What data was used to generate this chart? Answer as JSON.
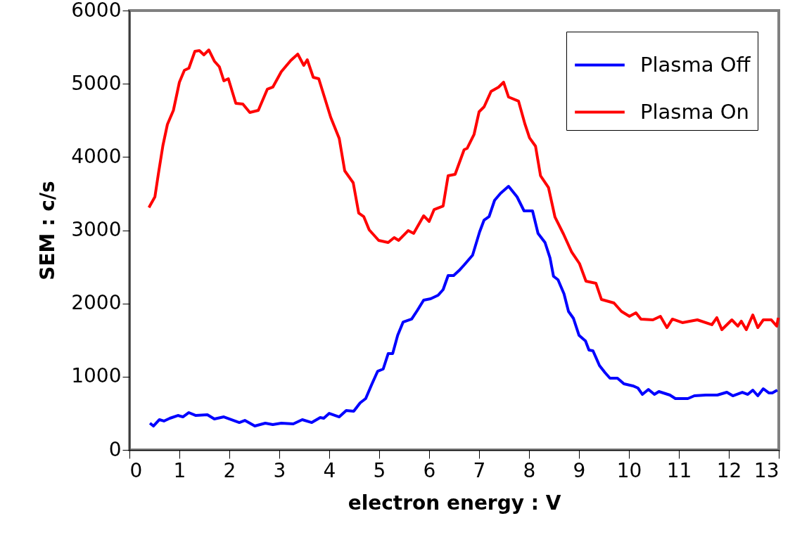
{
  "chart_data": {
    "type": "line",
    "xlabel": "electron energy : V",
    "ylabel": "SEM : c/s",
    "xlim": [
      0,
      13
    ],
    "xticks": [
      0,
      1,
      2,
      3,
      4,
      5,
      6,
      7,
      8,
      9,
      10,
      11,
      12,
      13
    ],
    "ylim": [
      0,
      6000
    ],
    "yticks": [
      0,
      1000,
      2000,
      3000,
      4000,
      5000,
      6000
    ],
    "grid": false,
    "legend": "top right",
    "marker": "none",
    "line_style": "solid",
    "series": [
      {
        "name": "Plasma Off",
        "color": "#0000ff",
        "x": [
          0.41,
          0.48,
          0.6,
          0.69,
          0.81,
          0.97,
          1.07,
          1.19,
          1.33,
          1.56,
          1.7,
          1.89,
          2.2,
          2.31,
          2.51,
          2.72,
          2.87,
          3.04,
          3.28,
          3.46,
          3.65,
          3.82,
          3.89,
          4.0,
          4.2,
          4.34,
          4.49,
          4.62,
          4.73,
          4.85,
          4.97,
          5.08,
          5.18,
          5.27,
          5.37,
          5.48,
          5.65,
          5.76,
          5.89,
          6.03,
          6.18,
          6.28,
          6.38,
          6.49,
          6.6,
          6.7,
          6.87,
          7.01,
          7.1,
          7.2,
          7.31,
          7.43,
          7.59,
          7.76,
          7.9,
          8.07,
          8.18,
          8.32,
          8.42,
          8.49,
          8.58,
          8.7,
          8.79,
          8.89,
          9.0,
          9.13,
          9.2,
          9.28,
          9.41,
          9.52,
          9.62,
          9.77,
          9.9,
          10.08,
          10.18,
          10.27,
          10.39,
          10.51,
          10.6,
          10.82,
          10.93,
          11.18,
          11.31,
          11.54,
          11.77,
          11.96,
          12.08,
          12.27,
          12.38,
          12.48,
          12.58,
          12.69,
          12.8,
          12.87,
          12.97
        ],
        "values": [
          365,
          326,
          413,
          394,
          432,
          470,
          451,
          509,
          470,
          480,
          422,
          451,
          374,
          403,
          326,
          365,
          346,
          365,
          355,
          413,
          374,
          442,
          432,
          499,
          451,
          538,
          528,
          643,
          701,
          893,
          1075,
          1104,
          1315,
          1315,
          1565,
          1747,
          1786,
          1901,
          2045,
          2064,
          2112,
          2189,
          2381,
          2381,
          2450,
          2525,
          2659,
          2976,
          3139,
          3187,
          3408,
          3504,
          3600,
          3456,
          3264,
          3264,
          2957,
          2832,
          2621,
          2371,
          2323,
          2131,
          1891,
          1795,
          1565,
          1488,
          1363,
          1354,
          1152,
          1056,
          979,
          979,
          902,
          874,
          845,
          758,
          826,
          758,
          797,
          749,
          701,
          701,
          739,
          749,
          749,
          787,
          739,
          787,
          758,
          816,
          739,
          835,
          778,
          778,
          816
        ]
      },
      {
        "name": "Plasma On",
        "color": "#ff0000",
        "x": [
          0.39,
          0.51,
          0.58,
          0.67,
          0.76,
          0.88,
          1.0,
          1.1,
          1.19,
          1.31,
          1.4,
          1.49,
          1.59,
          1.7,
          1.8,
          1.89,
          1.98,
          2.13,
          2.27,
          2.41,
          2.58,
          2.76,
          2.87,
          3.04,
          3.23,
          3.37,
          3.49,
          3.56,
          3.68,
          3.79,
          4.03,
          4.2,
          4.31,
          4.48,
          4.59,
          4.69,
          4.8,
          4.99,
          5.18,
          5.3,
          5.39,
          5.58,
          5.69,
          5.89,
          6.0,
          6.1,
          6.28,
          6.38,
          6.52,
          6.7,
          6.76,
          6.9,
          7.0,
          7.1,
          7.24,
          7.39,
          7.49,
          7.59,
          7.79,
          7.92,
          8.01,
          8.13,
          8.23,
          8.39,
          8.52,
          8.69,
          8.85,
          9.01,
          9.14,
          9.34,
          9.45,
          9.7,
          9.85,
          10.01,
          10.14,
          10.24,
          10.48,
          10.63,
          10.76,
          10.87,
          11.07,
          11.37,
          11.66,
          11.76,
          11.86,
          12.06,
          12.18,
          12.25,
          12.35,
          12.48,
          12.58,
          12.69,
          12.85,
          12.96,
          12.99
        ],
        "values": [
          3310,
          3456,
          3773,
          4157,
          4445,
          4637,
          5021,
          5184,
          5213,
          5443,
          5453,
          5395,
          5462,
          5309,
          5232,
          5040,
          5069,
          4733,
          4723,
          4608,
          4637,
          4925,
          4954,
          5165,
          5318,
          5405,
          5251,
          5328,
          5088,
          5069,
          4541,
          4253,
          3811,
          3648,
          3235,
          3187,
          3005,
          2861,
          2832,
          2899,
          2861,
          2995,
          2957,
          3197,
          3120,
          3283,
          3331,
          3744,
          3763,
          4099,
          4118,
          4310,
          4618,
          4685,
          4896,
          4954,
          5021,
          4819,
          4762,
          4445,
          4262,
          4147,
          3744,
          3581,
          3178,
          2947,
          2707,
          2544,
          2304,
          2275,
          2054,
          2006,
          1891,
          1824,
          1872,
          1786,
          1776,
          1824,
          1670,
          1786,
          1738,
          1776,
          1709,
          1805,
          1642,
          1776,
          1690,
          1757,
          1642,
          1843,
          1670,
          1776,
          1776,
          1690,
          1805
        ]
      }
    ]
  }
}
